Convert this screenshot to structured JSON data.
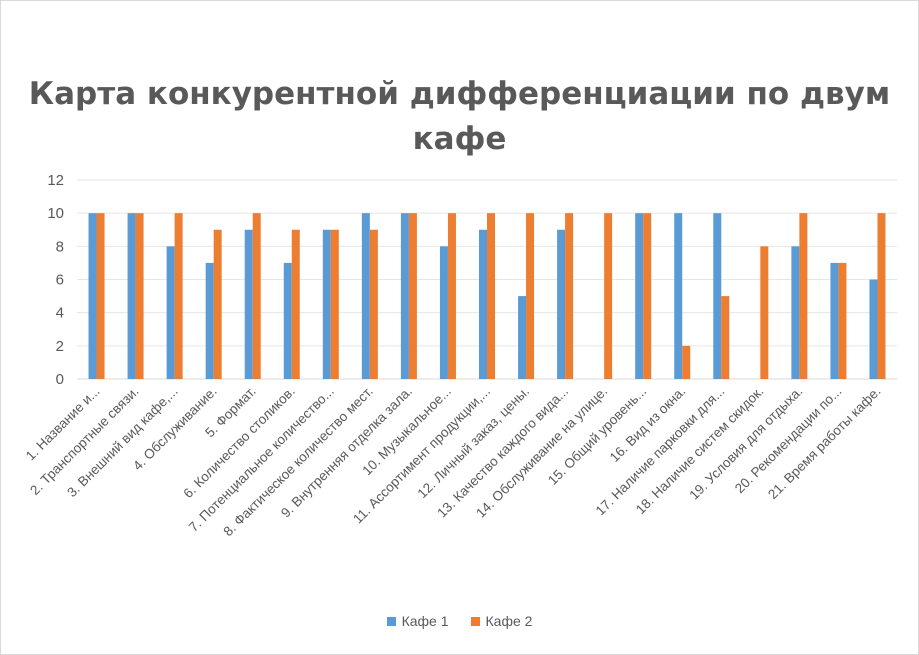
{
  "chart_data": {
    "type": "bar",
    "title": "Карта конкурентной дифференциации по двум кафе",
    "ylim": [
      0,
      12
    ],
    "yticks": [
      "0",
      "2",
      "4",
      "6",
      "8",
      "10",
      "12"
    ],
    "grid": true,
    "legend_position": "bottom",
    "categories": [
      "1. Название и...",
      "2. Транспортные связи.",
      "3. Внешний вид кафе,...",
      "4. Обслуживание.",
      "5. Формат.",
      "6. Количество столиков.",
      "7. Потенциальное количество...",
      "8. Фактическое количество мест.",
      "9. Внутренняя отделка зала.",
      "10. Музыкальное...",
      "11. Ассортимент продукции,...",
      "12. Личный заказ, цены.",
      "13. Качество каждого вида...",
      "14. Обслуживание на улице.",
      "15. Общий уровень...",
      "16. Вид из окна.",
      "17. Наличие парковки для...",
      "18. Наличие систем скидок.",
      "19. Условия для отдыха.",
      "20. Рекомендации по...",
      "21. Время работы кафе."
    ],
    "series": [
      {
        "name": "Кафе 1",
        "color": "#5b9bd5",
        "values": [
          10,
          10,
          8,
          7,
          9,
          7,
          9,
          10,
          10,
          8,
          9,
          5,
          9,
          0,
          10,
          10,
          10,
          0,
          8,
          7,
          6
        ]
      },
      {
        "name": "Кафе 2",
        "color": "#ed7d31",
        "values": [
          10,
          10,
          10,
          9,
          10,
          9,
          9,
          9,
          10,
          10,
          10,
          10,
          10,
          10,
          10,
          2,
          5,
          8,
          10,
          7,
          10
        ]
      }
    ]
  }
}
